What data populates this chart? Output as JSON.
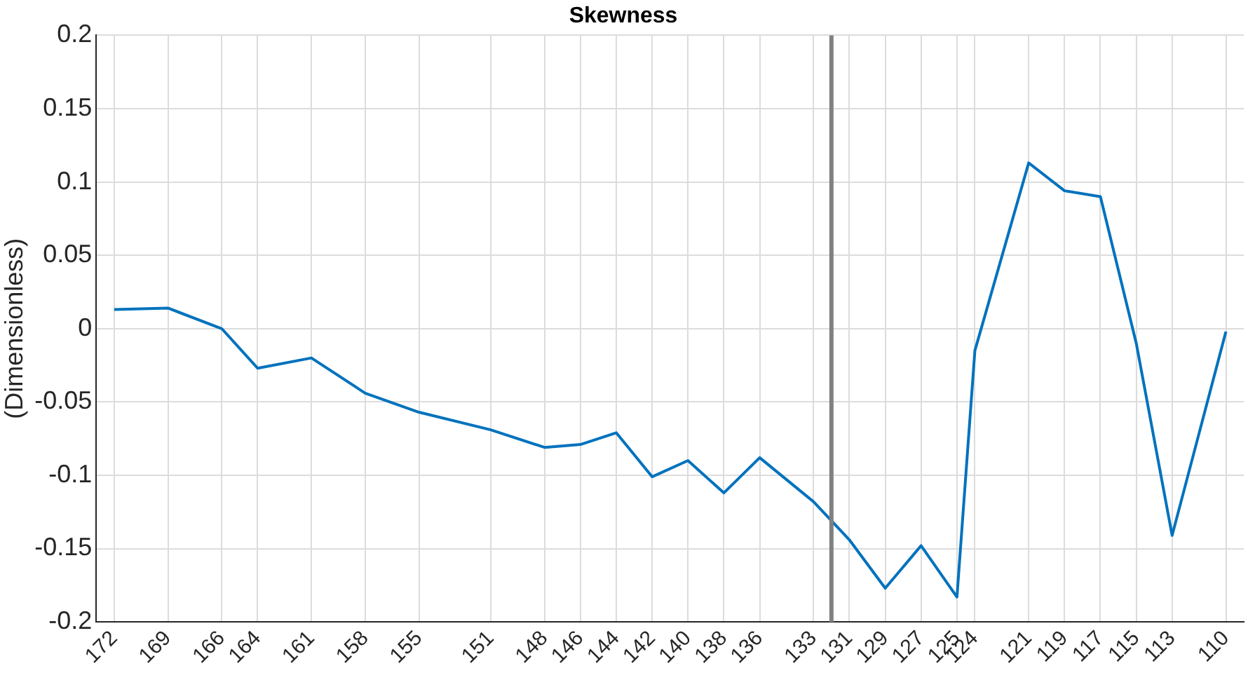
{
  "chart_data": {
    "type": "line",
    "title": "Skewness",
    "ylabel": "(Dimensionless)",
    "x": [
      172,
      169,
      166,
      164,
      161,
      158,
      155,
      151,
      148,
      146,
      144,
      142,
      140,
      138,
      136,
      133,
      131,
      129,
      127,
      125,
      124,
      121,
      119,
      117,
      115,
      113,
      110
    ],
    "series": [
      {
        "color": "#0072bd",
        "values": [
          0.013,
          0.014,
          0,
          -0.027,
          -0.02,
          -0.044,
          -0.057,
          -0.069,
          -0.081,
          -0.079,
          -0.071,
          -0.101,
          -0.09,
          -0.112,
          -0.088,
          -0.118,
          -0.144,
          -0.177,
          -0.148,
          -0.183,
          -0.015,
          0.113,
          0.094,
          0.09,
          -0.01,
          -0.141,
          -0.002
        ]
      }
    ],
    "xlim": [
      173,
      109
    ],
    "xticks": [
      172,
      169,
      166,
      164,
      161,
      158,
      155,
      151,
      148,
      146,
      144,
      142,
      140,
      138,
      136,
      133,
      131,
      129,
      127,
      125,
      124,
      121,
      119,
      117,
      115,
      113,
      110
    ],
    "ylim": [
      -0.2,
      0.2
    ],
    "yticks": [
      -0.2,
      -0.15,
      -0.1,
      -0.05,
      0,
      0.05,
      0.1,
      0.15,
      0.2
    ],
    "ref_lines": [
      {
        "axis": "x",
        "value": 132,
        "color": "#808080"
      }
    ],
    "grid": true,
    "legend": false,
    "marker": "none",
    "line_style": "solid"
  }
}
